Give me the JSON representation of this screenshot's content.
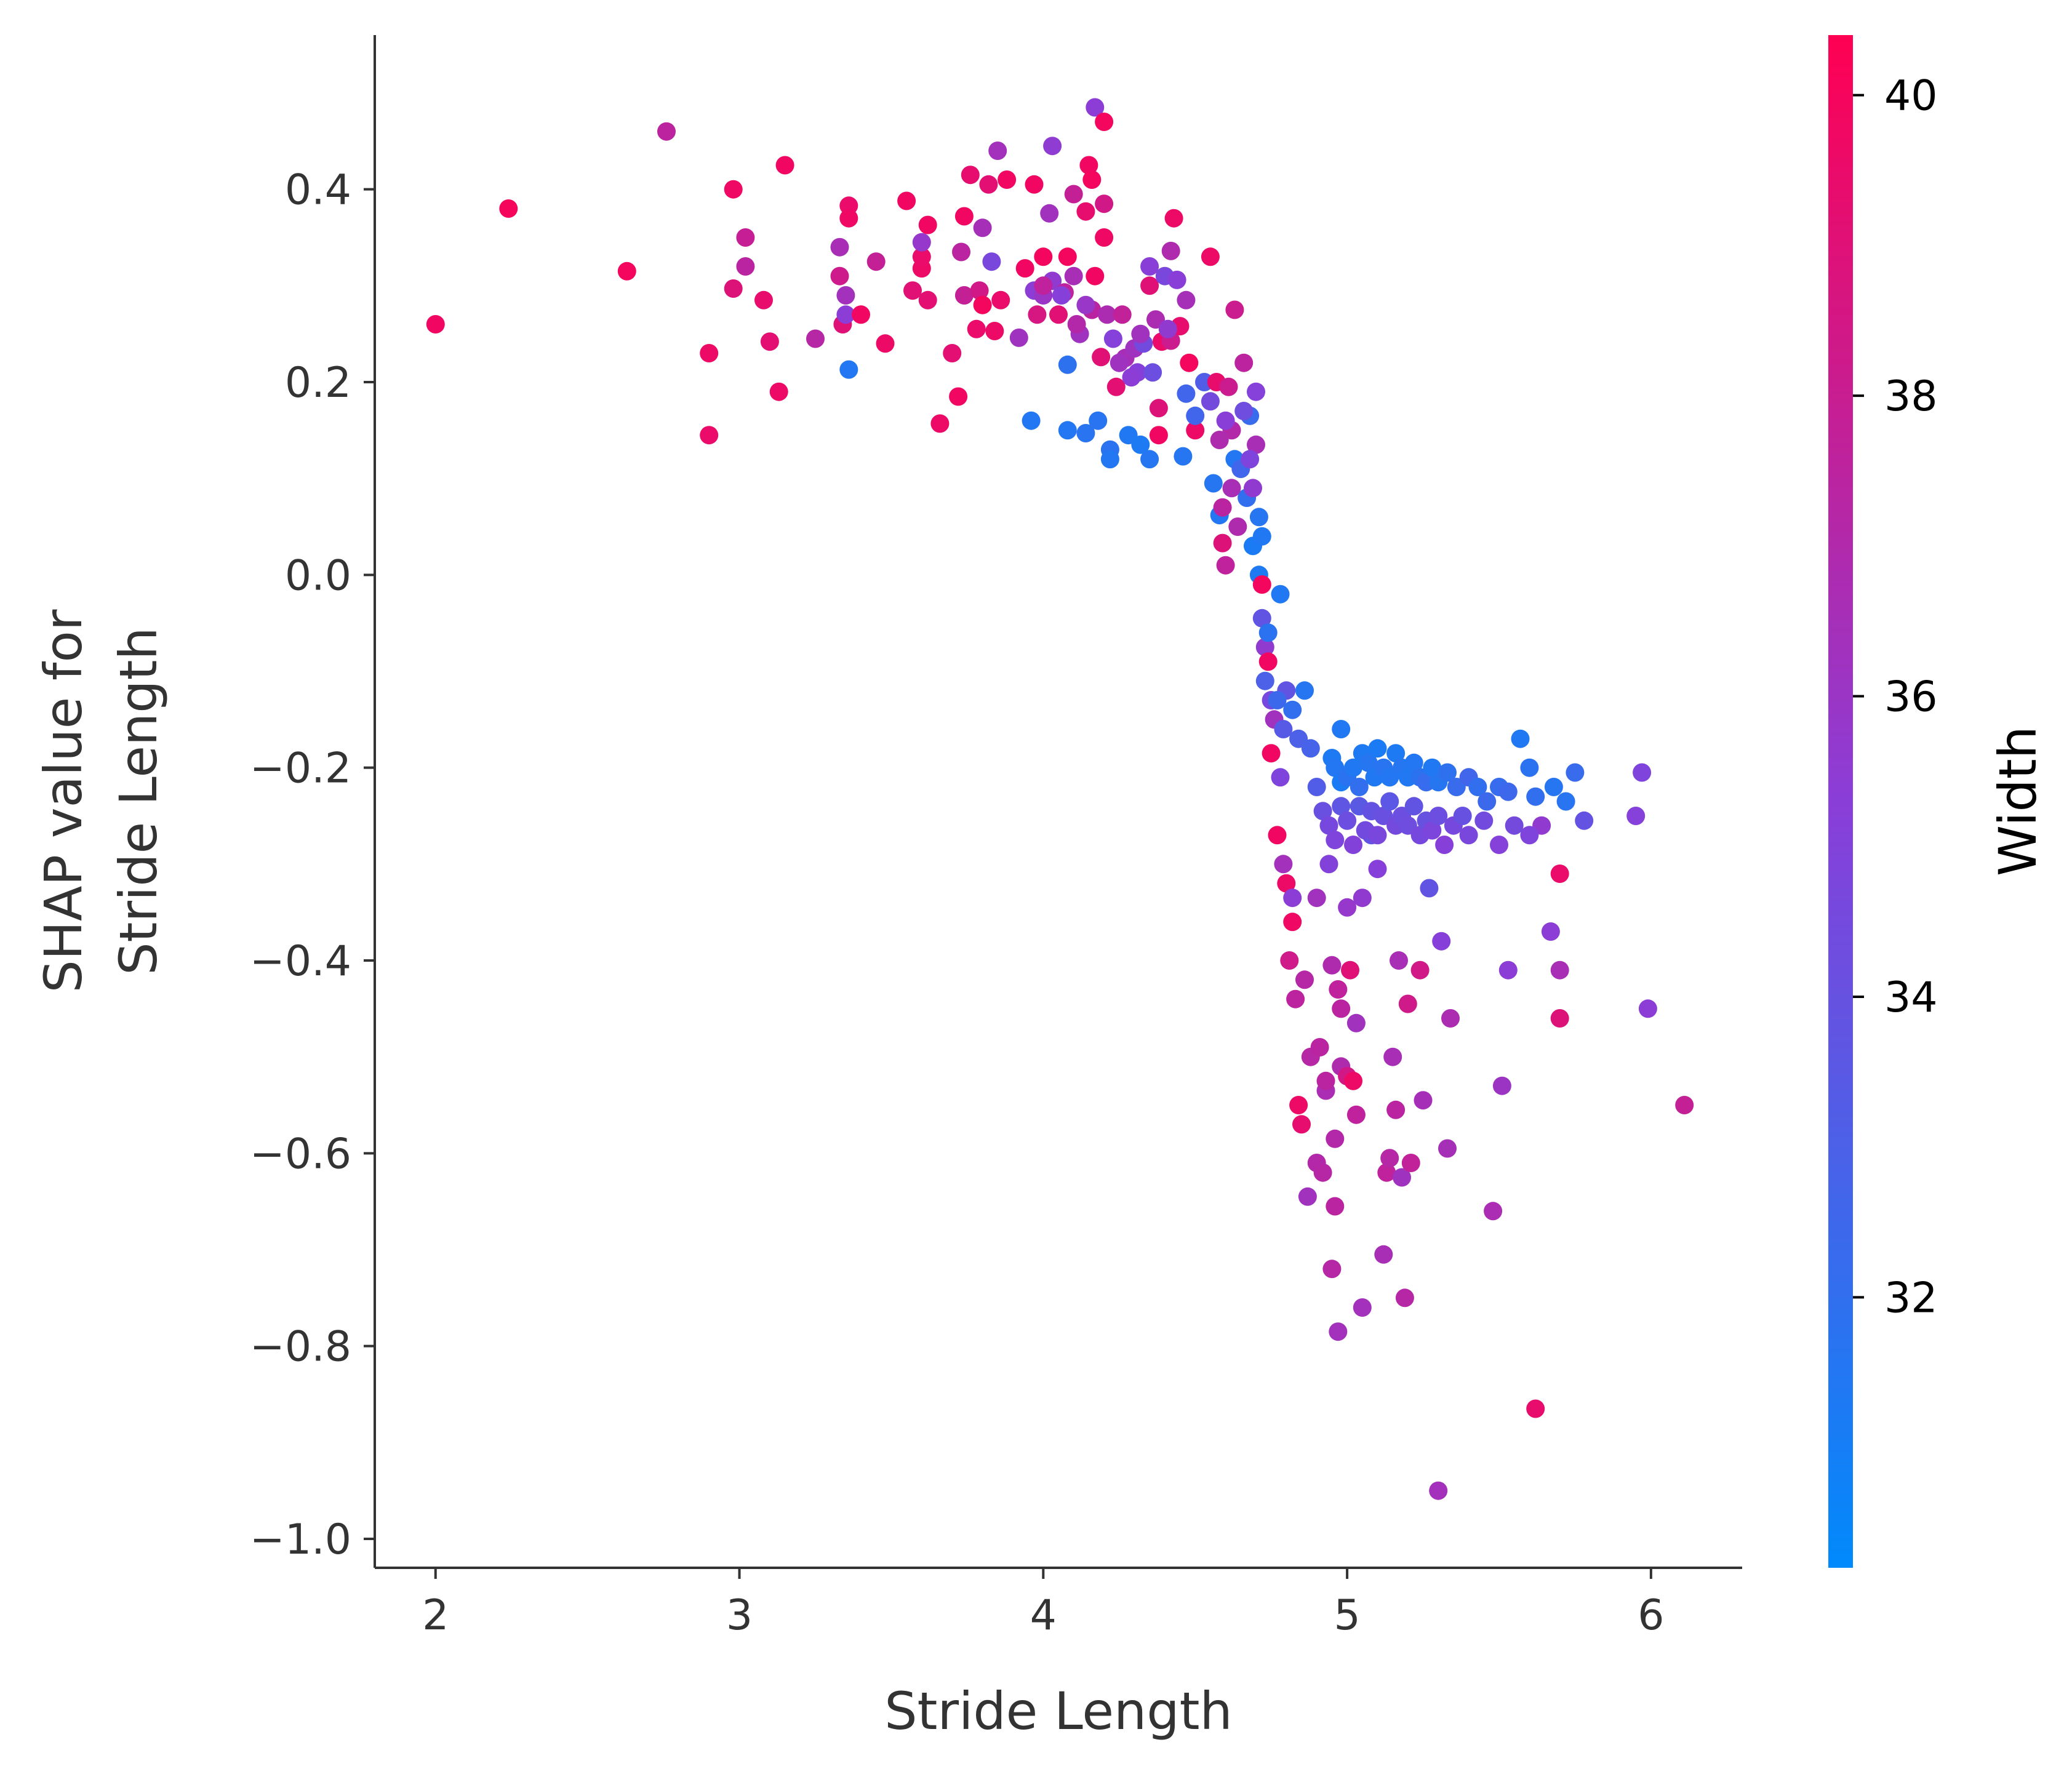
{
  "chart_data": {
    "type": "scatter",
    "xlabel": "Stride Length",
    "ylabel_lines": [
      "SHAP value for",
      "Stride Length"
    ],
    "xlim": [
      1.8,
      6.3
    ],
    "ylim": [
      -1.03,
      0.56
    ],
    "xticks": [
      2,
      3,
      4,
      5,
      6
    ],
    "yticks": [
      0.4,
      0.2,
      0.0,
      -0.2,
      -0.4,
      -0.6,
      -0.8,
      -1.0
    ],
    "ytick_labels": [
      "0.4",
      "0.2",
      "0.0",
      "−0.2",
      "−0.4",
      "−0.6",
      "−0.8",
      "−1.0"
    ],
    "colorbar": {
      "label": "Width",
      "range": [
        30.2,
        40.4
      ],
      "ticks": [
        32,
        34,
        36,
        38,
        40
      ],
      "tick_labels": [
        "32",
        "34",
        "36",
        "38",
        "40"
      ],
      "color_low": "#008afb",
      "color_mid": "#8a3ed8",
      "color_high": "#ff0052"
    },
    "points": [
      [
        2.0,
        0.26,
        39.8
      ],
      [
        2.24,
        0.38,
        40.0
      ],
      [
        2.63,
        0.315,
        39.9
      ],
      [
        2.76,
        0.46,
        37.5
      ],
      [
        2.9,
        0.23,
        39.6
      ],
      [
        2.9,
        0.145,
        39.5
      ],
      [
        2.98,
        0.4,
        39.7
      ],
      [
        2.98,
        0.297,
        38.9
      ],
      [
        3.02,
        0.35,
        37.9
      ],
      [
        3.02,
        0.32,
        37.4
      ],
      [
        3.08,
        0.285,
        39.4
      ],
      [
        3.1,
        0.242,
        39.2
      ],
      [
        3.13,
        0.19,
        39.6
      ],
      [
        3.15,
        0.425,
        39.8
      ],
      [
        3.25,
        0.245,
        37.2
      ],
      [
        3.33,
        0.31,
        38.2
      ],
      [
        3.33,
        0.34,
        36.6
      ],
      [
        3.34,
        0.26,
        39.0
      ],
      [
        3.35,
        0.29,
        36.4
      ],
      [
        3.35,
        0.27,
        35.4
      ],
      [
        3.36,
        0.383,
        39.5
      ],
      [
        3.36,
        0.37,
        39.7
      ],
      [
        3.36,
        0.213,
        31.5
      ],
      [
        3.4,
        0.27,
        39.8
      ],
      [
        3.45,
        0.325,
        37.8
      ],
      [
        3.48,
        0.24,
        39.6
      ],
      [
        3.55,
        0.388,
        39.8
      ],
      [
        3.57,
        0.295,
        39.1
      ],
      [
        3.6,
        0.318,
        39.6
      ],
      [
        3.6,
        0.33,
        39.5
      ],
      [
        3.6,
        0.345,
        35.8
      ],
      [
        3.62,
        0.285,
        39.2
      ],
      [
        3.62,
        0.363,
        39.8
      ],
      [
        3.66,
        0.157,
        39.6
      ],
      [
        3.7,
        0.23,
        39.2
      ],
      [
        3.72,
        0.185,
        39.8
      ],
      [
        3.73,
        0.335,
        37.4
      ],
      [
        3.74,
        0.372,
        39.8
      ],
      [
        3.74,
        0.29,
        37.8
      ],
      [
        3.76,
        0.415,
        39.3
      ],
      [
        3.78,
        0.255,
        39.5
      ],
      [
        3.79,
        0.295,
        38.4
      ],
      [
        3.8,
        0.36,
        36.5
      ],
      [
        3.8,
        0.28,
        39.9
      ],
      [
        3.82,
        0.405,
        39.2
      ],
      [
        3.83,
        0.325,
        34.7
      ],
      [
        3.84,
        0.253,
        39.6
      ],
      [
        3.85,
        0.44,
        36.4
      ],
      [
        3.86,
        0.285,
        39.5
      ],
      [
        3.88,
        0.41,
        39.8
      ],
      [
        3.92,
        0.246,
        36.2
      ],
      [
        3.94,
        0.318,
        39.8
      ],
      [
        3.96,
        0.16,
        31.5
      ],
      [
        3.97,
        0.405,
        39.8
      ],
      [
        3.97,
        0.295,
        35.4
      ],
      [
        3.98,
        0.27,
        38.6
      ],
      [
        4.0,
        0.33,
        39.9
      ],
      [
        4.0,
        0.29,
        36.0
      ],
      [
        4.02,
        0.375,
        36.3
      ],
      [
        4.03,
        0.305,
        35.6
      ],
      [
        4.03,
        0.445,
        35.5
      ],
      [
        4.05,
        0.27,
        39.1
      ],
      [
        4.07,
        0.293,
        37.6
      ],
      [
        4.08,
        0.33,
        39.9
      ],
      [
        4.08,
        0.218,
        31.9
      ],
      [
        4.08,
        0.15,
        31.5
      ],
      [
        4.1,
        0.395,
        37.8
      ],
      [
        4.1,
        0.31,
        36.6
      ],
      [
        4.12,
        0.25,
        36.2
      ],
      [
        4.14,
        0.147,
        31.7
      ],
      [
        4.14,
        0.377,
        39.3
      ],
      [
        4.15,
        0.425,
        39.8
      ],
      [
        4.16,
        0.275,
        37.4
      ],
      [
        4.16,
        0.41,
        39.9
      ],
      [
        4.17,
        0.485,
        35.4
      ],
      [
        4.17,
        0.31,
        39.8
      ],
      [
        4.18,
        0.16,
        31.7
      ],
      [
        4.19,
        0.226,
        39.1
      ],
      [
        4.2,
        0.47,
        39.9
      ],
      [
        4.2,
        0.35,
        39.7
      ],
      [
        4.2,
        0.385,
        38.4
      ],
      [
        4.21,
        0.27,
        36.8
      ],
      [
        4.22,
        0.13,
        31.8
      ],
      [
        4.22,
        0.12,
        31.5
      ],
      [
        4.23,
        0.245,
        35.1
      ],
      [
        4.24,
        0.195,
        39.2
      ],
      [
        4.26,
        0.27,
        37.7
      ],
      [
        4.27,
        0.225,
        36.6
      ],
      [
        4.28,
        0.145,
        31.4
      ],
      [
        4.3,
        0.235,
        36.2
      ],
      [
        4.31,
        0.21,
        35.2
      ],
      [
        4.32,
        0.135,
        31.3
      ],
      [
        4.33,
        0.24,
        34.4
      ],
      [
        4.35,
        0.12,
        31.6
      ],
      [
        4.35,
        0.3,
        39.0
      ],
      [
        4.35,
        0.32,
        35.3
      ],
      [
        4.36,
        0.21,
        34.2
      ],
      [
        4.37,
        0.265,
        36.8
      ],
      [
        4.38,
        0.145,
        39.8
      ],
      [
        4.38,
        0.173,
        38.9
      ],
      [
        4.39,
        0.242,
        39.5
      ],
      [
        4.4,
        0.31,
        34.7
      ],
      [
        4.42,
        0.243,
        38.1
      ],
      [
        4.42,
        0.336,
        36.9
      ],
      [
        4.43,
        0.37,
        39.6
      ],
      [
        4.44,
        0.306,
        35.3
      ],
      [
        4.45,
        0.258,
        39.3
      ],
      [
        4.46,
        0.123,
        31.6
      ],
      [
        4.47,
        0.188,
        32.6
      ],
      [
        4.47,
        0.285,
        36.5
      ],
      [
        4.48,
        0.22,
        39.9
      ],
      [
        4.5,
        0.15,
        39.6
      ],
      [
        4.5,
        0.165,
        32.6
      ],
      [
        4.53,
        0.2,
        33.2
      ],
      [
        4.55,
        0.33,
        39.6
      ],
      [
        4.56,
        0.095,
        31.6
      ],
      [
        4.57,
        0.2,
        39.4
      ],
      [
        4.58,
        0.062,
        31.5
      ],
      [
        4.59,
        0.033,
        38.9
      ],
      [
        4.59,
        0.07,
        37.4
      ],
      [
        4.6,
        0.01,
        37.6
      ],
      [
        4.61,
        0.195,
        38.1
      ],
      [
        4.62,
        0.15,
        37.1
      ],
      [
        4.63,
        0.275,
        38.1
      ],
      [
        4.63,
        0.12,
        31.5
      ],
      [
        4.64,
        0.05,
        36.9
      ],
      [
        4.65,
        0.11,
        32.6
      ],
      [
        4.66,
        0.22,
        37.5
      ],
      [
        4.67,
        0.08,
        32.0
      ],
      [
        4.68,
        0.165,
        32.3
      ],
      [
        4.69,
        0.03,
        31.2
      ],
      [
        4.7,
        0.19,
        35.1
      ],
      [
        4.7,
        0.135,
        36.6
      ],
      [
        4.71,
        0.06,
        31.6
      ],
      [
        4.71,
        0.0,
        31.3
      ],
      [
        4.72,
        -0.01,
        39.9
      ],
      [
        4.72,
        -0.045,
        33.8
      ],
      [
        4.73,
        -0.075,
        35.6
      ],
      [
        4.73,
        -0.11,
        33.0
      ],
      [
        4.74,
        -0.09,
        39.8
      ],
      [
        4.75,
        -0.13,
        34.6
      ],
      [
        4.75,
        -0.185,
        39.8
      ],
      [
        4.76,
        -0.15,
        36.3
      ],
      [
        4.77,
        -0.27,
        39.8
      ],
      [
        4.78,
        -0.21,
        34.9
      ],
      [
        4.79,
        -0.3,
        36.4
      ],
      [
        4.8,
        -0.12,
        33.8
      ],
      [
        4.8,
        -0.32,
        39.6
      ],
      [
        4.81,
        -0.4,
        38.3
      ],
      [
        4.82,
        -0.36,
        39.7
      ],
      [
        4.82,
        -0.335,
        35.4
      ],
      [
        4.83,
        -0.44,
        37.5
      ],
      [
        4.84,
        -0.55,
        39.6
      ],
      [
        4.85,
        -0.57,
        39.3
      ],
      [
        4.86,
        -0.42,
        37.2
      ],
      [
        4.87,
        -0.645,
        36.3
      ],
      [
        4.88,
        -0.5,
        37.2
      ],
      [
        4.9,
        -0.61,
        37.1
      ],
      [
        4.9,
        -0.335,
        36.3
      ],
      [
        4.91,
        -0.49,
        37.4
      ],
      [
        4.92,
        -0.62,
        37.2
      ],
      [
        4.93,
        -0.535,
        36.7
      ],
      [
        4.93,
        -0.525,
        37.4
      ],
      [
        4.94,
        -0.3,
        35.0
      ],
      [
        4.95,
        -0.405,
        36.9
      ],
      [
        4.95,
        -0.72,
        37.2
      ],
      [
        4.96,
        -0.655,
        37.4
      ],
      [
        4.96,
        -0.585,
        37.1
      ],
      [
        4.97,
        -0.43,
        37.6
      ],
      [
        4.97,
        -0.785,
        36.4
      ],
      [
        4.98,
        -0.45,
        37.4
      ],
      [
        4.98,
        -0.51,
        36.9
      ],
      [
        5.0,
        -0.345,
        35.8
      ],
      [
        5.0,
        -0.52,
        38.4
      ],
      [
        5.01,
        -0.41,
        39.0
      ],
      [
        5.02,
        -0.525,
        39.6
      ],
      [
        5.03,
        -0.465,
        36.3
      ],
      [
        5.03,
        -0.56,
        37.6
      ],
      [
        5.05,
        -0.76,
        36.4
      ],
      [
        5.05,
        -0.335,
        35.6
      ],
      [
        5.08,
        -0.27,
        33.8
      ],
      [
        5.1,
        -0.305,
        35.2
      ],
      [
        5.12,
        -0.705,
        36.6
      ],
      [
        5.13,
        -0.62,
        37.6
      ],
      [
        5.14,
        -0.605,
        37.2
      ],
      [
        5.15,
        -0.5,
        36.6
      ],
      [
        5.16,
        -0.555,
        37.4
      ],
      [
        5.17,
        -0.4,
        36.6
      ],
      [
        5.18,
        -0.625,
        36.2
      ],
      [
        5.19,
        -0.75,
        37.2
      ],
      [
        5.2,
        -0.445,
        38.3
      ],
      [
        5.21,
        -0.61,
        37.7
      ],
      [
        5.24,
        -0.41,
        38.4
      ],
      [
        5.25,
        -0.545,
        36.5
      ],
      [
        5.27,
        -0.325,
        33.8
      ],
      [
        5.3,
        -0.95,
        36.4
      ],
      [
        5.31,
        -0.38,
        35.2
      ],
      [
        5.33,
        -0.595,
        36.5
      ],
      [
        5.34,
        -0.46,
        36.8
      ],
      [
        5.48,
        -0.66,
        36.7
      ],
      [
        5.51,
        -0.53,
        36.1
      ],
      [
        5.53,
        -0.41,
        35.4
      ],
      [
        5.62,
        -0.865,
        39.4
      ],
      [
        5.64,
        -0.26,
        35.6
      ],
      [
        5.67,
        -0.37,
        35.4
      ],
      [
        5.7,
        -0.31,
        39.5
      ],
      [
        5.7,
        -0.41,
        36.6
      ],
      [
        5.7,
        -0.46,
        38.9
      ],
      [
        5.95,
        -0.25,
        35.1
      ],
      [
        5.97,
        -0.205,
        34.9
      ],
      [
        5.99,
        -0.45,
        35.4
      ],
      [
        6.11,
        -0.55,
        37.8
      ],
      [
        4.95,
        -0.19,
        31.3
      ],
      [
        4.96,
        -0.2,
        31.5
      ],
      [
        4.98,
        -0.215,
        31.2
      ],
      [
        4.98,
        -0.16,
        31.4
      ],
      [
        5.0,
        -0.21,
        31.8
      ],
      [
        5.02,
        -0.2,
        31.4
      ],
      [
        5.04,
        -0.22,
        32.0
      ],
      [
        5.05,
        -0.185,
        31.3
      ],
      [
        5.07,
        -0.195,
        31.6
      ],
      [
        5.09,
        -0.21,
        31.4
      ],
      [
        5.1,
        -0.18,
        31.2
      ],
      [
        5.12,
        -0.2,
        31.7
      ],
      [
        5.14,
        -0.21,
        31.5
      ],
      [
        5.16,
        -0.185,
        31.3
      ],
      [
        5.18,
        -0.2,
        31.6
      ],
      [
        5.2,
        -0.21,
        31.4
      ],
      [
        5.22,
        -0.195,
        31.5
      ],
      [
        5.24,
        -0.21,
        31.8
      ],
      [
        5.26,
        -0.215,
        32.2
      ],
      [
        5.28,
        -0.2,
        31.4
      ],
      [
        5.3,
        -0.215,
        31.6
      ],
      [
        5.33,
        -0.205,
        31.9
      ],
      [
        5.36,
        -0.22,
        32.3
      ],
      [
        5.4,
        -0.21,
        32.6
      ],
      [
        5.43,
        -0.22,
        32.0
      ],
      [
        5.46,
        -0.235,
        32.4
      ],
      [
        5.5,
        -0.22,
        32.2
      ],
      [
        5.53,
        -0.225,
        32.5
      ],
      [
        5.57,
        -0.17,
        31.4
      ],
      [
        5.6,
        -0.2,
        31.8
      ],
      [
        5.62,
        -0.23,
        32.0
      ],
      [
        5.68,
        -0.22,
        31.6
      ],
      [
        5.72,
        -0.235,
        31.7
      ],
      [
        5.75,
        -0.205,
        32.3
      ],
      [
        4.9,
        -0.22,
        33.2
      ],
      [
        4.92,
        -0.245,
        34.1
      ],
      [
        4.94,
        -0.26,
        34.6
      ],
      [
        4.96,
        -0.275,
        34.9
      ],
      [
        4.98,
        -0.24,
        33.7
      ],
      [
        5.0,
        -0.255,
        34.2
      ],
      [
        5.02,
        -0.28,
        35.0
      ],
      [
        5.04,
        -0.24,
        33.5
      ],
      [
        5.06,
        -0.265,
        34.4
      ],
      [
        5.08,
        -0.245,
        33.9
      ],
      [
        5.1,
        -0.27,
        34.7
      ],
      [
        5.12,
        -0.25,
        34.1
      ],
      [
        5.14,
        -0.235,
        33.6
      ],
      [
        5.16,
        -0.26,
        34.5
      ],
      [
        5.18,
        -0.25,
        34.2
      ],
      [
        5.2,
        -0.26,
        34.3
      ],
      [
        5.22,
        -0.24,
        33.8
      ],
      [
        5.24,
        -0.27,
        34.6
      ],
      [
        5.26,
        -0.255,
        34.0
      ],
      [
        5.28,
        -0.265,
        34.8
      ],
      [
        5.3,
        -0.25,
        34.2
      ],
      [
        5.32,
        -0.28,
        35.2
      ],
      [
        5.35,
        -0.26,
        34.6
      ],
      [
        5.38,
        -0.25,
        34.0
      ],
      [
        5.4,
        -0.27,
        34.7
      ],
      [
        5.45,
        -0.255,
        34.4
      ],
      [
        5.5,
        -0.28,
        35.1
      ],
      [
        5.55,
        -0.26,
        34.5
      ],
      [
        5.6,
        -0.27,
        34.9
      ],
      [
        5.78,
        -0.255,
        33.9
      ],
      [
        4.78,
        -0.02,
        31.4
      ],
      [
        4.74,
        -0.06,
        31.8
      ],
      [
        4.77,
        -0.13,
        32.4
      ],
      [
        4.79,
        -0.16,
        33.4
      ],
      [
        4.82,
        -0.14,
        32.0
      ],
      [
        4.84,
        -0.17,
        33.0
      ],
      [
        4.86,
        -0.12,
        31.6
      ],
      [
        4.88,
        -0.18,
        32.8
      ],
      [
        4.66,
        0.17,
        34.3
      ],
      [
        4.68,
        0.12,
        34.9
      ],
      [
        4.69,
        0.09,
        35.6
      ],
      [
        4.72,
        0.04,
        31.4
      ],
      [
        4.62,
        0.09,
        36.6
      ],
      [
        4.58,
        0.14,
        36.9
      ],
      [
        4.55,
        0.18,
        34.5
      ],
      [
        4.6,
        0.16,
        35.3
      ],
      [
        4.25,
        0.22,
        36.2
      ],
      [
        4.29,
        0.205,
        35.4
      ],
      [
        4.32,
        0.25,
        36.3
      ],
      [
        4.41,
        0.255,
        35.6
      ],
      [
        4.14,
        0.28,
        35.9
      ],
      [
        4.11,
        0.26,
        37.1
      ],
      [
        4.06,
        0.29,
        35.2
      ],
      [
        4.0,
        0.3,
        37.6
      ]
    ]
  }
}
